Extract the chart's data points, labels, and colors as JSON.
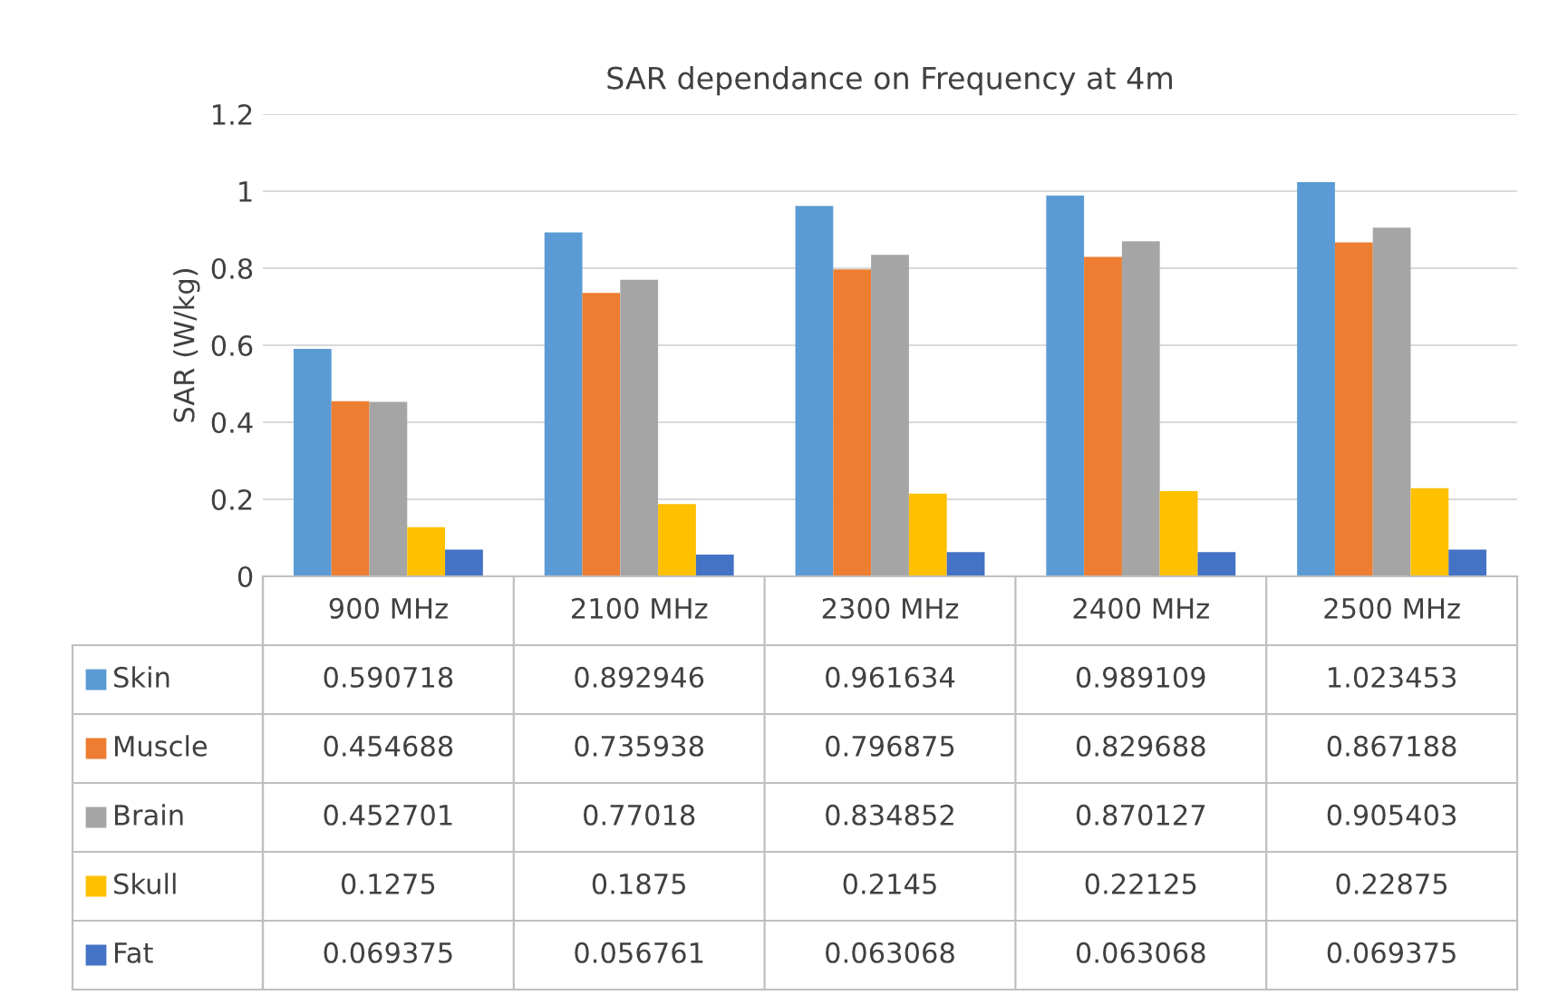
{
  "chart_data": {
    "type": "bar",
    "title": "SAR dependance on Frequency at 4m",
    "ylabel": "SAR (W/kg)",
    "categories": [
      "900 MHz",
      "2100 MHz",
      "2300 MHz",
      "2400 MHz",
      "2500 MHz"
    ],
    "series": [
      {
        "name": "Skin",
        "color": "#5b9bd5",
        "values": [
          0.590718,
          0.892946,
          0.961634,
          0.989109,
          1.023453
        ]
      },
      {
        "name": "Muscle",
        "color": "#ed7d31",
        "values": [
          0.454688,
          0.735938,
          0.796875,
          0.829688,
          0.867188
        ]
      },
      {
        "name": "Brain",
        "color": "#a5a5a5",
        "values": [
          0.452701,
          0.77018,
          0.834852,
          0.870127,
          0.905403
        ]
      },
      {
        "name": "Skull",
        "color": "#ffc000",
        "values": [
          0.1275,
          0.1875,
          0.2145,
          0.22125,
          0.22875
        ]
      },
      {
        "name": "Fat",
        "color": "#4472c4",
        "values": [
          0.069375,
          0.056761,
          0.063068,
          0.063068,
          0.069375
        ]
      }
    ],
    "ylim": [
      0,
      1.2
    ],
    "yticks": [
      0,
      0.2,
      0.4,
      0.6,
      0.8,
      1,
      1.2
    ],
    "grid": "y",
    "legend": "bottom",
    "data_labels": true
  }
}
